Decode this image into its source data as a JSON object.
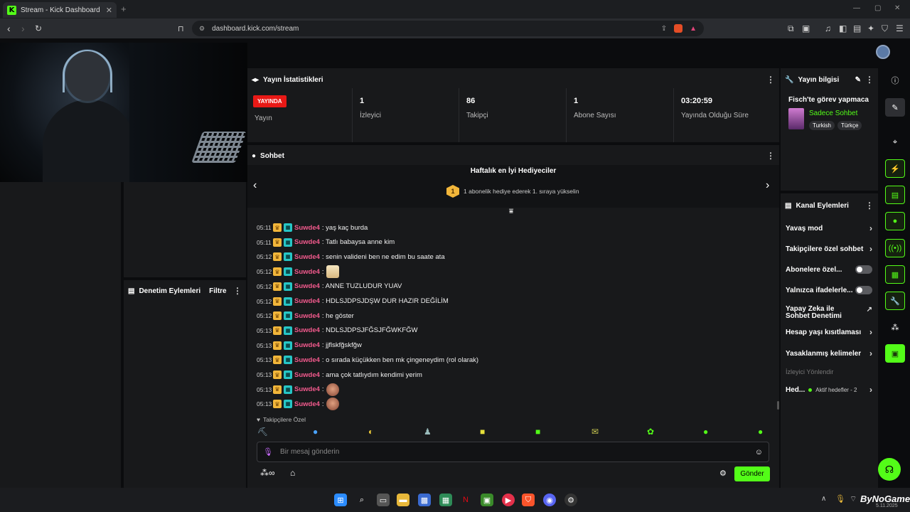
{
  "browser": {
    "tab_title": "Stream - Kick Dashboard",
    "url": "dashboard.kick.com/stream"
  },
  "stats": {
    "title": "Yayın İstatistikleri",
    "live_badge": "YAYINDA",
    "cells": [
      {
        "value": "",
        "label": "Yayın"
      },
      {
        "value": "1",
        "label": "İzleyici"
      },
      {
        "value": "86",
        "label": "Takipçi"
      },
      {
        "value": "1",
        "label": "Abone Sayısı"
      },
      {
        "value": "03:20:59",
        "label": "Yayında Olduğu Süre"
      }
    ]
  },
  "mod_panel": {
    "title": "Denetim Eylemleri",
    "filter": "Filtre"
  },
  "chat": {
    "title": "Sohbet",
    "gifters_title": "Haftalık en İyi Hediyeciler",
    "gifters_rank": "1",
    "gifters_text": "1 abonelik hediye ederek 1. sıraya yükselin",
    "messages": [
      {
        "time": "05:11",
        "user": "Suwde4",
        "text": ": yaş kaç burda",
        "emote": ""
      },
      {
        "time": "05:11",
        "user": "Suwde4",
        "text": ": Tatlı babaysa anne kim",
        "emote": ""
      },
      {
        "time": "05:12",
        "user": "Suwde4",
        "text": ": senin valideni ben ne edim bu saate ata",
        "emote": ""
      },
      {
        "time": "05:12",
        "user": "Suwde4",
        "text": ":",
        "emote": "cat"
      },
      {
        "time": "05:12",
        "user": "Suwde4",
        "text": ": ANNE TUZLUDUR YUAV",
        "emote": ""
      },
      {
        "time": "05:12",
        "user": "Suwde4",
        "text": ": HDLSJDPSJDŞW DUR HAZIR DEĞİLİM",
        "emote": ""
      },
      {
        "time": "05:12",
        "user": "Suwde4",
        "text": ": he göster",
        "emote": ""
      },
      {
        "time": "05:13",
        "user": "Suwde4",
        "text": ": NDLSJDPSJFĞSJFĞWKFĞW",
        "emote": ""
      },
      {
        "time": "05:13",
        "user": "Suwde4",
        "text": ": jjflskfğskfğw",
        "emote": ""
      },
      {
        "time": "05:13",
        "user": "Suwde4",
        "text": ": o sırada küçükken ben mk çingeneydim (rol olarak)",
        "emote": ""
      },
      {
        "time": "05:13",
        "user": "Suwde4",
        "text": ": ama çok tatlıydım kendimi yerim",
        "emote": ""
      },
      {
        "time": "05:13",
        "user": "Suwde4",
        "text": ":",
        "emote": "face"
      },
      {
        "time": "05:13",
        "user": "Suwde4",
        "text": ":",
        "emote": "face"
      }
    ],
    "followers_only": "Takipçilere Özel",
    "input_placeholder": "Bir mesaj gönderin",
    "send_label": "Gönder"
  },
  "stream_info": {
    "title": "Yayın bilgisi",
    "stream_title": "Fisch'te görev yapmaca",
    "category": "Sadece Sohbet",
    "tags": [
      "Turkish",
      "Türkçe"
    ]
  },
  "channel_actions": {
    "title": "Kanal Eylemleri",
    "items": [
      {
        "label": "Yavaş mod",
        "control": "chevron"
      },
      {
        "label": "Takipçilere özel sohbet",
        "control": "chevron"
      },
      {
        "label": "Abonelere özel...",
        "control": "toggle"
      },
      {
        "label": "Yalnızca ifadelerle...",
        "control": "toggle"
      },
      {
        "label": "Yapay Zeka ile Sohbet Denetimi",
        "control": "external"
      },
      {
        "label": "Hesap yaşı kısıtlaması",
        "control": "chevron"
      },
      {
        "label": "Yasaklanmış kelimeler",
        "control": "chevron"
      }
    ],
    "section_label": "İzleyici Yönlendir",
    "goals_label": "Hed...",
    "goals_status": "Aktif hedefler - 2"
  },
  "taskbar": {
    "watermark": "ByNoGame",
    "date": "5.11.2025"
  },
  "colors": {
    "brand": "#53fc18",
    "live": "#e91916",
    "username": "#f25a8d"
  }
}
